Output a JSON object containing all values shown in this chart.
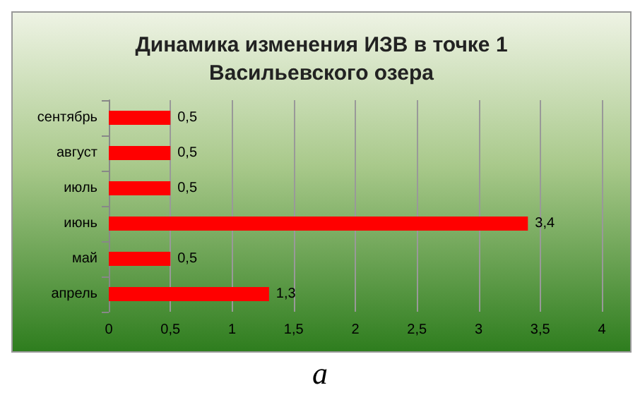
{
  "chart_data": {
    "type": "bar",
    "orientation": "horizontal",
    "title": "Динамика изменения ИЗВ в точке 1\nВасильевского озера",
    "categories": [
      "сентябрь",
      "август",
      "июль",
      "июнь",
      "май",
      "апрель"
    ],
    "values": [
      0.5,
      0.5,
      0.5,
      3.4,
      0.5,
      1.3
    ],
    "value_labels": [
      "0,5",
      "0,5",
      "0,5",
      "3,4",
      "0,5",
      "1,3"
    ],
    "color": "#ff0000",
    "xlim": [
      0,
      4
    ],
    "xticks": [
      0,
      {
        "value": 0.5,
        "label": "0,5"
      },
      1,
      {
        "value": 1.5,
        "label": "1,5"
      },
      2,
      {
        "value": 2.5,
        "label": "2,5"
      },
      3,
      {
        "value": 3.5,
        "label": "3,5"
      },
      4
    ],
    "grid": "x",
    "annotations": [
      "а"
    ]
  }
}
